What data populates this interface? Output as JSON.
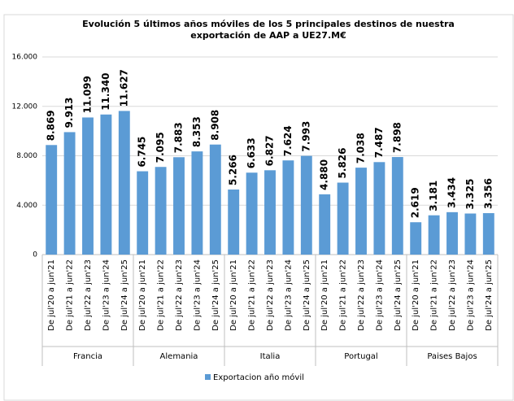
{
  "chart_data": {
    "type": "bar",
    "title": [
      "Evolución  5 últimos años móviles de los 5 principales  destinos de nuestra",
      "exportación de AAP a UE27.M€"
    ],
    "categories": [
      "De jul'20 a jun'21",
      "De jul'21 a jun'22",
      "De jul'22 a jun'23",
      "De jul'23 a jun'24",
      "De jul'24 a jun'25",
      "De jul'20 a jun'21",
      "De jul'21 a jun'22",
      "De jul'22 a jun'23",
      "De jul'23 a jun'24",
      "De jul'24 a jun'25",
      "De jul'20 a jun'21",
      "De jul'21 a jun'22",
      "De jul'22 a jun'23",
      "De jul'23 a jun'24",
      "De jul'24 a jun'25",
      "De jul'20 a jun'21",
      "De jul'21 a jun'22",
      "De jul'22 a jun'23",
      "De jul'23 a jun'24",
      "De jul'24 a jun'25",
      "De jul'20 a jun'21",
      "De jul'21 a jun'22",
      "De jul'22 a jun'23",
      "De jul'23 a jun'24",
      "De jul'24 a jun'25"
    ],
    "groups": [
      "Francia",
      "Alemania",
      "Italia",
      "Portugal",
      "Paises Bajos"
    ],
    "series": [
      {
        "name": "Exportacion año móvil",
        "color": "#5b9bd5",
        "values": [
          8869,
          9913,
          11099,
          11340,
          11627,
          6745,
          7095,
          7883,
          8353,
          8908,
          5266,
          6633,
          6827,
          7624,
          7993,
          4880,
          5826,
          7038,
          7487,
          7898,
          2619,
          3181,
          3434,
          3325,
          3356
        ],
        "value_labels": [
          "8.869",
          "9.913",
          "11.099",
          "11.340",
          "11.627",
          "6.745",
          "7.095",
          "7.883",
          "8.353",
          "8.908",
          "5.266",
          "6.633",
          "6.827",
          "7.624",
          "7.993",
          "4.880",
          "5.826",
          "7.038",
          "7.487",
          "7.898",
          "2.619",
          "3.181",
          "3.434",
          "3.325",
          "3.356"
        ]
      }
    ],
    "ylim": [
      0,
      16000
    ],
    "yticks": [
      0,
      {
        "value": 4000,
        "label": "4.000"
      },
      {
        "value": 8000,
        "label": "8.000"
      },
      {
        "value": 12000,
        "label": "12.000"
      },
      {
        "value": 16000,
        "label": "16.000"
      }
    ],
    "grid": true,
    "legend": "bottom"
  }
}
